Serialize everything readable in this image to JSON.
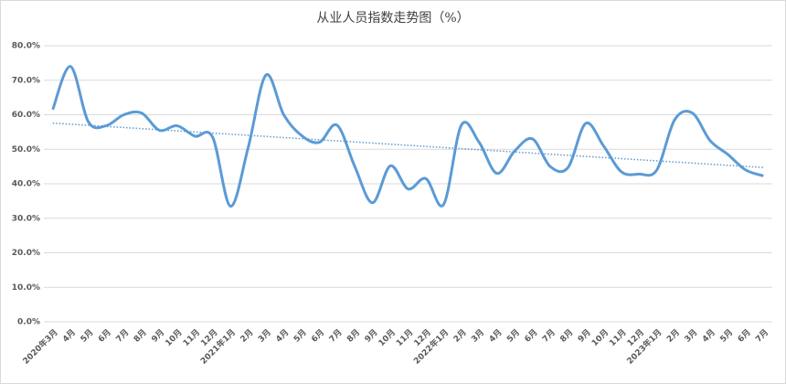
{
  "chart_data": {
    "type": "line",
    "title": "从业人员指数走势图（%）",
    "categories": [
      "2020年3月",
      "4月",
      "5月",
      "6月",
      "7月",
      "8月",
      "9月",
      "10月",
      "11月",
      "12月",
      "2021年1月",
      "2月",
      "3月",
      "4月",
      "5月",
      "6月",
      "7月",
      "8月",
      "9月",
      "10月",
      "11月",
      "12月",
      "2022年1月",
      "2月",
      "3月",
      "4月",
      "5月",
      "6月",
      "7月",
      "8月",
      "9月",
      "10月",
      "11月",
      "12月",
      "2023年1月",
      "2月",
      "3月",
      "4月",
      "5月",
      "6月",
      "7月"
    ],
    "series": [
      {
        "name": "从业人员指数",
        "color": "#5b9bd5",
        "values": [
          61.5,
          74,
          58,
          56.8,
          60,
          60.5,
          55.5,
          56.8,
          53.8,
          53.5,
          33.5,
          50.5,
          71.5,
          60,
          54,
          52,
          57,
          45,
          34.5,
          45.2,
          38.5,
          41.5,
          34,
          57,
          52,
          43,
          49.5,
          53,
          45,
          44.7,
          57.5,
          51,
          43.5,
          42.8,
          44,
          58.5,
          60.5,
          52.5,
          48.5,
          44,
          42.3
        ]
      }
    ],
    "ylim": [
      0,
      80
    ],
    "yticks": [
      {
        "value": 0,
        "label": "0.0%"
      },
      {
        "value": 10,
        "label": "10.0%"
      },
      {
        "value": 20,
        "label": "20.0%"
      },
      {
        "value": 30,
        "label": "30.0%"
      },
      {
        "value": 40,
        "label": "40.0%"
      },
      {
        "value": 50,
        "label": "50.0%"
      },
      {
        "value": 60,
        "label": "60.0%"
      },
      {
        "value": 70,
        "label": "70.0%"
      },
      {
        "value": 80,
        "label": "80.0%"
      }
    ],
    "grid": true,
    "trendline": true
  }
}
